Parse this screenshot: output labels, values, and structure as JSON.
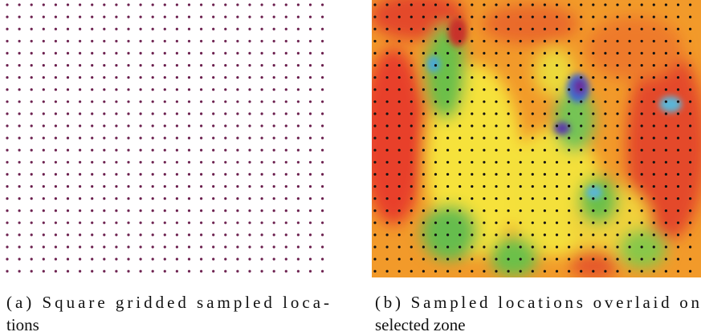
{
  "figures": [
    {
      "caption_lines": [
        "(a) Square gridded sampled loca-",
        "tions"
      ]
    },
    {
      "caption_lines": [
        "(b) Sampled locations overlaid on",
        "selected zone"
      ]
    }
  ]
}
